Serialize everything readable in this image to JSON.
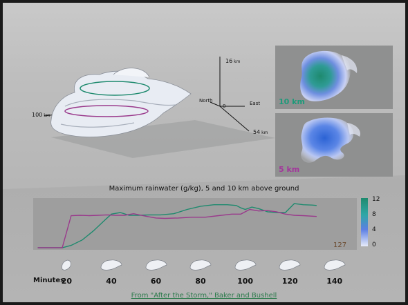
{
  "scene": {
    "axis_top": "16",
    "axis_top_unit": "km",
    "north": "North",
    "origin": "0",
    "east": "East",
    "left_dist": "100",
    "left_dist_unit": "km",
    "depth": "54",
    "depth_unit": "km"
  },
  "panels": [
    {
      "label": "10 km",
      "color": "#1e9a7a"
    },
    {
      "label": "5 km",
      "color": "#a3359c"
    }
  ],
  "chart_data": {
    "type": "line",
    "title": "Maximum rainwater (g/kg), 5 and 10 km above ground",
    "xlabel": "Minutes",
    "x_ticks": [
      "20",
      "40",
      "60",
      "80",
      "100",
      "120",
      "140"
    ],
    "xlim": [
      5,
      150
    ],
    "ylim": [
      0,
      12
    ],
    "colorbar_ticks": [
      "12",
      "8",
      "4",
      "0"
    ],
    "annotation": "127",
    "series": [
      {
        "color": "#1e8a6e",
        "x": [
          7,
          13,
          18,
          22,
          27,
          32,
          37,
          40,
          44,
          48,
          52,
          57,
          62,
          68,
          74,
          80,
          86,
          92,
          96,
          98,
          100,
          103,
          106,
          110,
          114,
          118,
          122,
          126,
          130,
          132
        ],
        "y": [
          0,
          0,
          0,
          0.6,
          2.0,
          4.3,
          7.0,
          8.6,
          9.0,
          8.3,
          8.3,
          8.4,
          8.4,
          8.7,
          9.8,
          10.6,
          11.0,
          11.0,
          10.8,
          10.2,
          9.8,
          10.4,
          10.0,
          9.2,
          9.0,
          9.0,
          11.3,
          11.0,
          10.9,
          10.8
        ]
      },
      {
        "color": "#9a3a8c",
        "x": [
          7,
          13,
          18,
          22,
          26,
          30,
          34,
          38,
          42,
          46,
          50,
          56,
          60,
          64,
          70,
          76,
          82,
          88,
          94,
          98,
          102,
          106,
          110,
          114,
          118,
          122,
          126,
          132
        ],
        "y": [
          0,
          0,
          0,
          8.2,
          8.3,
          8.2,
          8.3,
          8.4,
          8.3,
          8.3,
          8.7,
          8.0,
          7.6,
          7.5,
          7.6,
          7.8,
          7.8,
          8.2,
          8.6,
          8.6,
          9.8,
          9.4,
          9.5,
          9.2,
          8.6,
          8.3,
          8.2,
          8.0
        ]
      }
    ]
  },
  "credit": "From \"After the Storm,\" Baker and Bushell"
}
